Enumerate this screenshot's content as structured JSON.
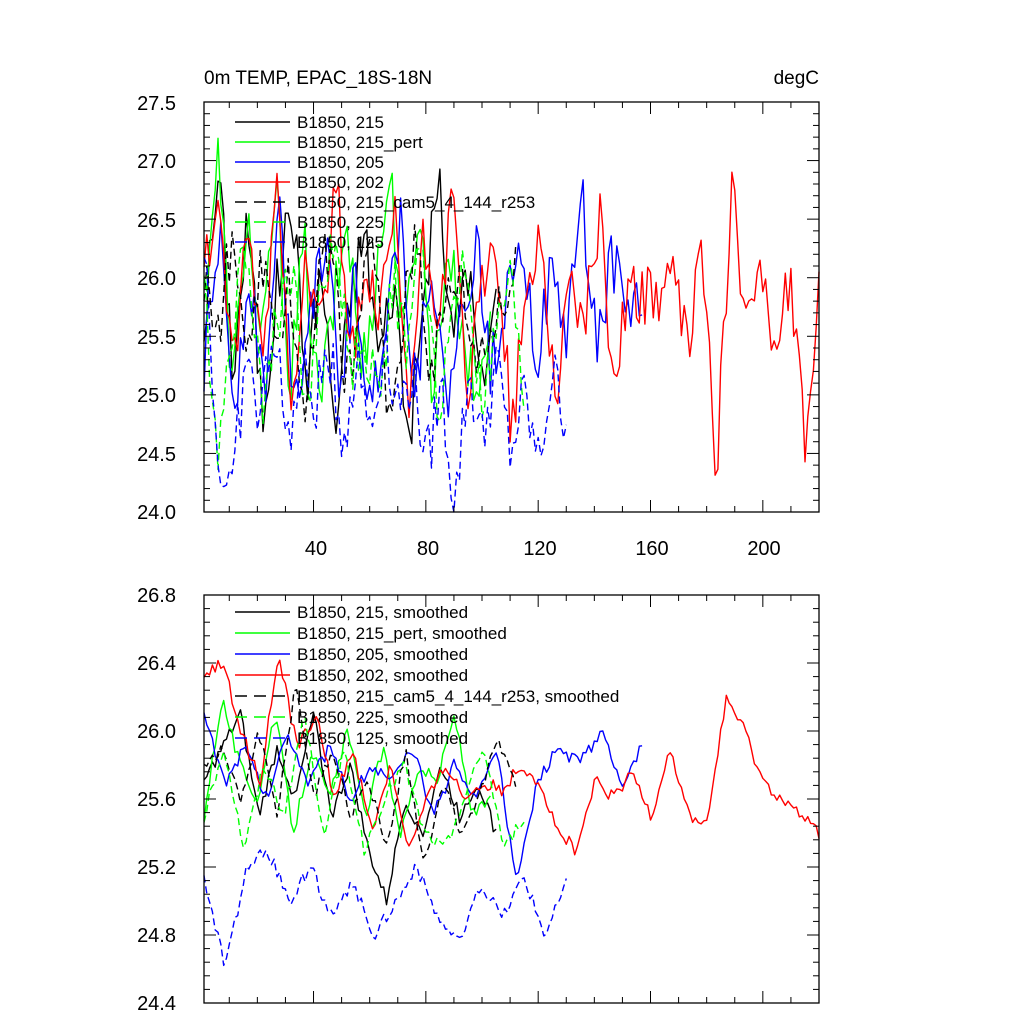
{
  "chart_data": [
    {
      "type": "line",
      "title": "0m TEMP, EPAC_18S-18N",
      "units": "degC",
      "ylim": [
        24.0,
        27.5
      ],
      "xlim": [
        1,
        220
      ],
      "yticks": [
        "24.0",
        "24.5",
        "25.0",
        "25.5",
        "26.0",
        "26.5",
        "27.0",
        "27.5"
      ],
      "xticks": [
        "40",
        "80",
        "120",
        "160",
        "200"
      ],
      "legend_position": "top-left",
      "series": [
        {
          "name": "B1850, 215",
          "label": "B1850, 215",
          "color": "#000000",
          "dash": "solid",
          "n": 105,
          "anchors": [
            25.6,
            26.9,
            25.2,
            26.5,
            24.8,
            25.9,
            26.7,
            25.1,
            26.1,
            24.7,
            25.8,
            26.4,
            25.3,
            26.0,
            24.6,
            25.7,
            26.9,
            25.4,
            26.2,
            25.0,
            25.8
          ]
        },
        {
          "name": "B1850, 215_pert",
          "label": "B1850, 215_pert",
          "color": "#00ff00",
          "dash": "solid",
          "n": 103,
          "anchors": [
            25.9,
            27.05,
            25.0,
            26.6,
            25.3,
            26.8,
            25.1,
            26.3,
            24.9,
            25.7,
            26.5,
            25.2,
            26.0,
            26.9,
            25.4,
            26.7,
            25.0,
            26.3,
            25.6,
            24.9,
            25.8
          ]
        },
        {
          "name": "B1850, 205",
          "label": "B1850, 205",
          "color": "#0000ff",
          "dash": "solid",
          "n": 157,
          "anchors": [
            25.2,
            26.4,
            24.9,
            26.1,
            25.0,
            26.6,
            24.9,
            25.8,
            26.3,
            25.1,
            26.0,
            24.8,
            25.7,
            26.5,
            25.0,
            26.2,
            24.9,
            25.6,
            26.3,
            25.2,
            25.9,
            26.4,
            25.3,
            26.0,
            25.5,
            26.7,
            25.4,
            26.2,
            25.7,
            25.8
          ]
        },
        {
          "name": "B1850, 202",
          "label": "B1850, 202",
          "color": "#ff0000",
          "dash": "solid",
          "n": 220,
          "anchors": [
            26.0,
            26.7,
            25.1,
            26.4,
            25.3,
            26.8,
            25.0,
            26.2,
            25.5,
            26.9,
            25.2,
            26.0,
            25.6,
            26.5,
            24.9,
            26.3,
            25.7,
            26.6,
            25.0,
            25.9,
            26.3,
            24.7,
            25.8,
            26.4,
            25.0,
            26.0,
            25.6,
            26.5,
            25.1,
            26.0,
            25.8,
            25.9,
            26.0,
            25.4,
            26.3,
            24.3,
            26.7,
            25.8,
            26.1,
            25.3,
            26.0,
            24.6,
            25.9
          ]
        },
        {
          "name": "B1850, 215_cam5_4_144_r253",
          "label": "B1850, 215_cam5_4_144_r253",
          "color": "#000000",
          "dash": "dashed",
          "n": 112,
          "anchors": [
            26.0,
            25.5,
            26.4,
            25.1,
            26.2,
            25.3,
            26.1,
            24.8,
            25.9,
            26.3,
            25.0,
            25.7,
            26.4,
            24.7,
            25.6,
            26.5,
            25.2,
            25.8,
            26.1,
            25.4,
            25.5,
            25.7,
            26.1
          ]
        },
        {
          "name": "B1850, 225",
          "label": "B1850, 225",
          "color": "#00ff00",
          "dash": "dashed",
          "n": 115,
          "anchors": [
            25.9,
            24.5,
            25.7,
            26.3,
            25.0,
            25.6,
            26.1,
            24.9,
            25.8,
            26.4,
            25.2,
            25.5,
            24.9,
            26.0,
            25.3,
            26.5,
            24.8,
            25.6,
            26.2,
            24.9,
            25.4,
            26.0,
            24.9
          ]
        },
        {
          "name": "B1850, 125",
          "label": "B1850, 125",
          "color": "#0000ff",
          "dash": "dashed",
          "n": 130,
          "anchors": [
            26.4,
            24.4,
            24.2,
            25.3,
            24.8,
            25.6,
            24.6,
            25.2,
            24.9,
            25.4,
            24.6,
            25.3,
            24.7,
            25.5,
            24.9,
            25.2,
            24.4,
            25.1,
            24.05,
            25.2,
            24.6,
            25.3,
            24.5,
            25.0,
            24.4,
            25.2,
            24.8
          ]
        }
      ]
    },
    {
      "type": "line",
      "title": "",
      "units": "",
      "ylim": [
        24.4,
        26.8
      ],
      "xlim": [
        1,
        220
      ],
      "yticks": [
        "24.4",
        "24.8",
        "25.2",
        "25.6",
        "26.0",
        "26.4",
        "26.8"
      ],
      "xticks": [],
      "legend_position": "top-left",
      "series": [
        {
          "name": "B1850, 215, smoothed",
          "label": "B1850, 215, smoothed",
          "color": "#000000",
          "dash": "solid",
          "n": 105,
          "anchors": [
            25.7,
            25.9,
            26.1,
            25.5,
            25.9,
            25.6,
            26.1,
            25.5,
            25.8,
            25.3,
            25.0,
            25.6,
            25.4,
            25.8,
            25.5,
            25.7,
            25.4
          ]
        },
        {
          "name": "B1850, 215_pert, smoothed",
          "label": "B1850, 215_pert, smoothed",
          "color": "#00ff00",
          "dash": "solid",
          "n": 103,
          "anchors": [
            25.5,
            26.2,
            25.8,
            25.6,
            26.1,
            25.4,
            25.9,
            25.6,
            26.0,
            25.5,
            25.9,
            25.4,
            25.8,
            25.7,
            26.1,
            25.5,
            25.6
          ]
        },
        {
          "name": "B1850, 205, smoothed",
          "label": "B1850, 205, smoothed",
          "color": "#0000ff",
          "dash": "solid",
          "n": 157,
          "anchors": [
            26.1,
            25.7,
            25.9,
            25.6,
            26.0,
            25.7,
            25.9,
            25.6,
            25.8,
            25.7,
            25.9,
            25.5,
            25.8,
            25.6,
            25.9,
            25.1,
            25.7,
            25.9,
            25.8,
            26.0,
            25.7,
            25.9
          ]
        },
        {
          "name": "B1850, 202, smoothed",
          "label": "B1850, 202, smoothed",
          "color": "#ff0000",
          "dash": "solid",
          "n": 220,
          "anchors": [
            26.35,
            26.4,
            26.0,
            25.7,
            26.45,
            25.9,
            26.1,
            25.6,
            25.9,
            25.4,
            25.8,
            25.3,
            25.6,
            25.8,
            25.6,
            25.7,
            25.65,
            25.8,
            25.7,
            25.4,
            25.3,
            25.7,
            25.6,
            25.75,
            25.5,
            25.9,
            25.5,
            25.45,
            26.2,
            26.0,
            25.7,
            25.6,
            25.5,
            25.4
          ]
        },
        {
          "name": "B1850, 215_cam5_4_144_r253, smoothed",
          "label": "B1850, 215_cam5_4_144_r253, smoothed",
          "color": "#000000",
          "dash": "dashed",
          "n": 112,
          "anchors": [
            25.8,
            25.9,
            25.6,
            26.0,
            25.5,
            26.3,
            25.6,
            25.9,
            25.5,
            25.7,
            25.3,
            25.9,
            25.2,
            25.7,
            25.4,
            25.6,
            25.95,
            25.7
          ]
        },
        {
          "name": "B1850, 225, smoothed",
          "label": "B1850, 225, smoothed",
          "color": "#00ff00",
          "dash": "dashed",
          "n": 115,
          "anchors": [
            25.5,
            25.9,
            25.3,
            25.8,
            25.5,
            26.1,
            25.4,
            25.9,
            25.3,
            25.6,
            25.8,
            25.4,
            25.3,
            25.6,
            25.9,
            25.3,
            25.5
          ]
        },
        {
          "name": "B1850, 125, smoothed",
          "label": "B1850, 125, smoothed",
          "color": "#0000ff",
          "dash": "dashed",
          "n": 130,
          "anchors": [
            25.15,
            24.6,
            25.2,
            25.3,
            25.0,
            25.2,
            24.9,
            25.1,
            24.8,
            25.0,
            25.2,
            24.9,
            24.75,
            25.1,
            24.9,
            25.15,
            24.8,
            25.1
          ]
        }
      ]
    }
  ]
}
